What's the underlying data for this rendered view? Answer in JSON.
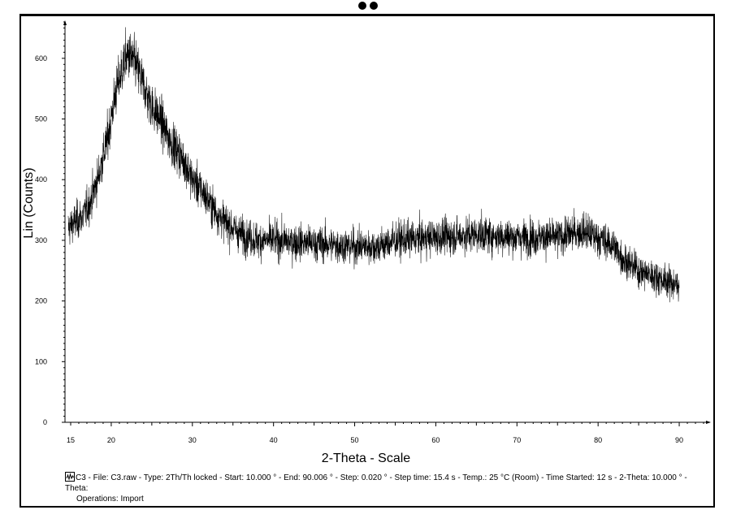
{
  "chart_data": {
    "type": "line",
    "title": "",
    "xlabel": "2-Theta - Scale",
    "ylabel": "Lin (Counts)",
    "xlim": [
      14.3,
      93.8
    ],
    "ylim": [
      0,
      660
    ],
    "x_ticks": [
      15,
      20,
      30,
      40,
      50,
      60,
      70,
      80,
      90
    ],
    "y_ticks": [
      0,
      100,
      200,
      300,
      400,
      500,
      600
    ],
    "grid": false,
    "legend_position": "bottom",
    "series": [
      {
        "name": "C3",
        "color": "#000000",
        "x_range": [
          14.7,
          90.0
        ],
        "step": 0.02,
        "noise": "high",
        "profile": [
          [
            14.7,
            320
          ],
          [
            15.5,
            330
          ],
          [
            16.5,
            340
          ],
          [
            17.5,
            365
          ],
          [
            18.5,
            410
          ],
          [
            19.5,
            465
          ],
          [
            20.5,
            540
          ],
          [
            21.5,
            590
          ],
          [
            22.0,
            605
          ],
          [
            22.5,
            600
          ],
          [
            23.0,
            590
          ],
          [
            24.0,
            555
          ],
          [
            25.0,
            520
          ],
          [
            26.0,
            500
          ],
          [
            27.0,
            470
          ],
          [
            28.0,
            450
          ],
          [
            29.0,
            430
          ],
          [
            30.0,
            400
          ],
          [
            31.0,
            385
          ],
          [
            32.0,
            365
          ],
          [
            33.0,
            345
          ],
          [
            34.0,
            330
          ],
          [
            35.0,
            320
          ],
          [
            36.0,
            310
          ],
          [
            38.0,
            300
          ],
          [
            40.0,
            300
          ],
          [
            45.0,
            295
          ],
          [
            50.0,
            290
          ],
          [
            53.0,
            290
          ],
          [
            55.0,
            300
          ],
          [
            60.0,
            305
          ],
          [
            65.0,
            310
          ],
          [
            70.0,
            305
          ],
          [
            75.0,
            305
          ],
          [
            78.0,
            315
          ],
          [
            80.0,
            305
          ],
          [
            82.0,
            290
          ],
          [
            83.0,
            270
          ],
          [
            85.0,
            250
          ],
          [
            87.0,
            240
          ],
          [
            88.0,
            235
          ],
          [
            90.0,
            225
          ]
        ]
      }
    ]
  },
  "top_fragment": "",
  "legend": {
    "line1": "C3 - File: C3.raw - Type: 2Th/Th locked - Start: 10.000 ° - End: 90.006 ° - Step: 0.020 ° - Step time: 15.4 s - Temp.: 25 °C (Room) - Time Started: 12 s - 2-Theta: 10.000 ° - Theta:",
    "line2": "Operations: Import"
  }
}
